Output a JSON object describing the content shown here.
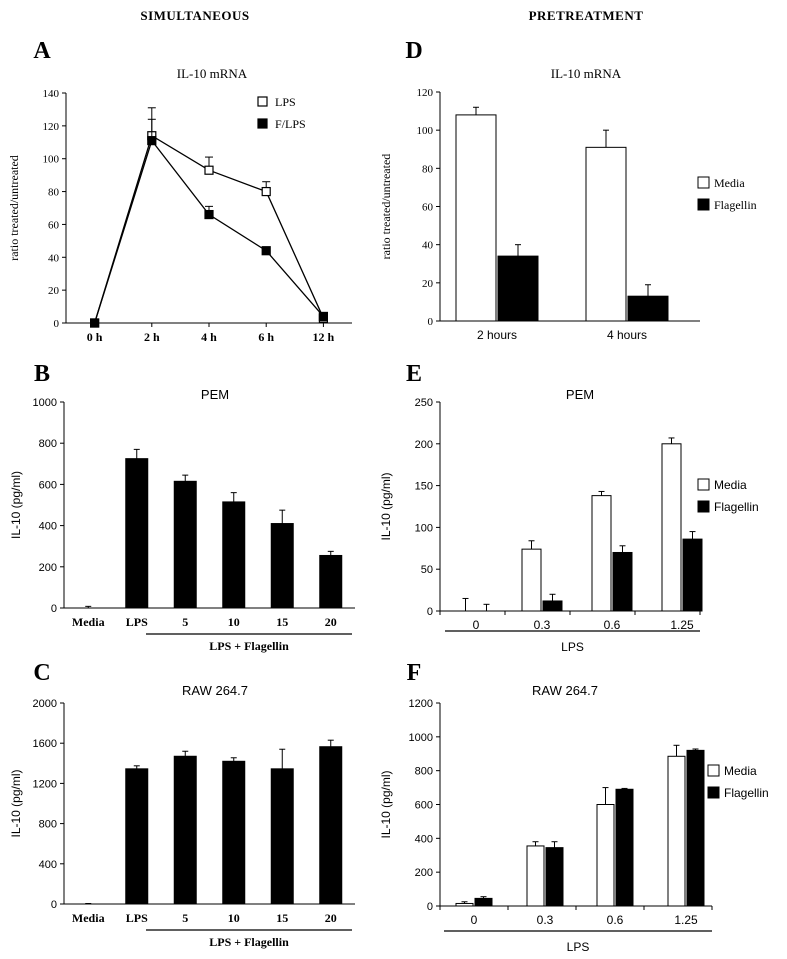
{
  "header": {
    "left": "SIMULTANEOUS",
    "right": "PRETREATMENT"
  },
  "chart_data": [
    {
      "id": "A",
      "letter": "A",
      "type": "line",
      "title": "IL-10 mRNA",
      "ylabel": "ratio treated/untreated",
      "ylim": [
        0,
        140
      ],
      "yticks": [
        0,
        20,
        40,
        60,
        80,
        100,
        120,
        140
      ],
      "categories": [
        "0 h",
        "2 h",
        "4 h",
        "6 h",
        "12 h"
      ],
      "series": [
        {
          "name": "LPS",
          "marker": "open-square",
          "values": [
            0,
            114,
            93,
            80,
            3
          ],
          "errors": [
            0,
            17,
            8,
            6,
            0
          ]
        },
        {
          "name": "F/LPS",
          "marker": "filled-square",
          "values": [
            0,
            111,
            66,
            44,
            4
          ],
          "errors": [
            0,
            13,
            5,
            2,
            0
          ]
        }
      ]
    },
    {
      "id": "B",
      "letter": "B",
      "type": "bar",
      "title": "PEM",
      "ylabel": "IL-10 (pg/ml)",
      "ylim": [
        0,
        1000
      ],
      "yticks": [
        0,
        200,
        400,
        600,
        800,
        1000
      ],
      "categories": [
        "Media",
        "LPS",
        "5",
        "10",
        "15",
        "20"
      ],
      "group_label": "LPS + Flagellin",
      "series": [
        {
          "values": [
            0,
            725,
            615,
            515,
            410,
            255
          ],
          "errors": [
            8,
            45,
            30,
            45,
            65,
            20
          ]
        }
      ]
    },
    {
      "id": "C",
      "letter": "C",
      "type": "bar",
      "title": "RAW 264.7",
      "ylabel": "IL-10 (pg/ml)",
      "ylim": [
        0,
        2000
      ],
      "yticks": [
        0,
        400,
        800,
        1200,
        1600,
        2000
      ],
      "categories": [
        "Media",
        "LPS",
        "5",
        "10",
        "15",
        "20"
      ],
      "group_label": "LPS + Flagellin",
      "series": [
        {
          "values": [
            0,
            1345,
            1470,
            1420,
            1345,
            1565
          ],
          "errors": [
            5,
            30,
            50,
            35,
            195,
            65
          ]
        }
      ]
    },
    {
      "id": "D",
      "letter": "D",
      "type": "bar",
      "title": "IL-10 mRNA",
      "ylabel": "ratio treated/untreated",
      "ylim": [
        0,
        120
      ],
      "yticks": [
        0,
        20,
        40,
        60,
        80,
        100,
        120
      ],
      "categories": [
        "2 hours",
        "4 hours"
      ],
      "legend": [
        "Media",
        "Flagellin"
      ],
      "series": [
        {
          "name": "Media",
          "fill": "#ffffff",
          "values": [
            108,
            91
          ],
          "errors": [
            4,
            9
          ]
        },
        {
          "name": "Flagellin",
          "fill": "#000000",
          "values": [
            34,
            13
          ],
          "errors": [
            6,
            6
          ]
        }
      ]
    },
    {
      "id": "E",
      "letter": "E",
      "type": "bar",
      "title": "PEM",
      "ylabel": "IL-10 (pg/ml)",
      "ylim": [
        0,
        250
      ],
      "yticks": [
        0,
        50,
        100,
        150,
        200,
        250
      ],
      "categories": [
        "0",
        "0.3",
        "0.6",
        "1.25"
      ],
      "group_label": "LPS",
      "legend": [
        "Media",
        "Flagellin"
      ],
      "series": [
        {
          "name": "Media",
          "fill": "#ffffff",
          "values": [
            0,
            74,
            138,
            200
          ],
          "errors": [
            15,
            10,
            5,
            7
          ]
        },
        {
          "name": "Flagellin",
          "fill": "#000000",
          "values": [
            0,
            12,
            70,
            86
          ],
          "errors": [
            8,
            8,
            8,
            9
          ]
        }
      ]
    },
    {
      "id": "F",
      "letter": "F",
      "type": "bar",
      "title": "RAW 264.7",
      "ylabel": "IL-10 (pg/ml)",
      "ylim": [
        0,
        1200
      ],
      "yticks": [
        0,
        200,
        400,
        600,
        800,
        1000,
        1200
      ],
      "categories": [
        "0",
        "0.3",
        "0.6",
        "1.25"
      ],
      "group_label": "LPS",
      "legend": [
        "Media",
        "Flagellin"
      ],
      "series": [
        {
          "name": "Media",
          "fill": "#ffffff",
          "values": [
            15,
            355,
            600,
            885
          ],
          "errors": [
            10,
            25,
            100,
            65
          ]
        },
        {
          "name": "Flagellin",
          "fill": "#000000",
          "values": [
            45,
            345,
            690,
            920
          ],
          "errors": [
            10,
            35,
            5,
            8
          ]
        }
      ]
    }
  ]
}
